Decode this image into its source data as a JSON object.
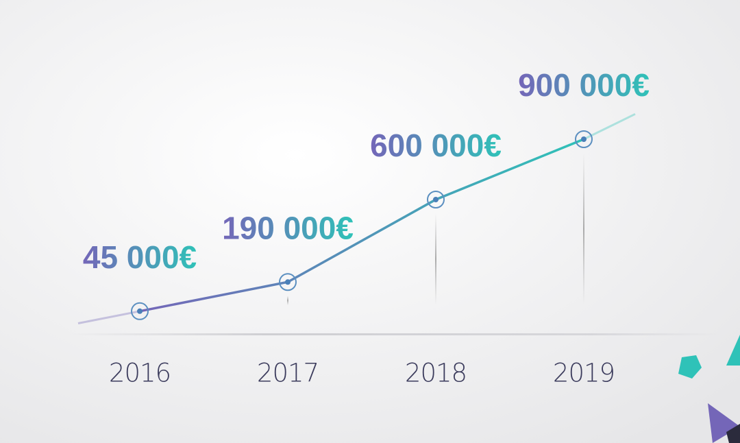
{
  "chart_data": {
    "type": "line",
    "categories": [
      "2016",
      "2017",
      "2018",
      "2019"
    ],
    "values": [
      45000,
      190000,
      600000,
      900000
    ],
    "value_labels": [
      "45 000€",
      "190 000€",
      "600 000€",
      "900 000€"
    ],
    "colors": [
      "#7466b8",
      "#2fc2b8"
    ]
  }
}
